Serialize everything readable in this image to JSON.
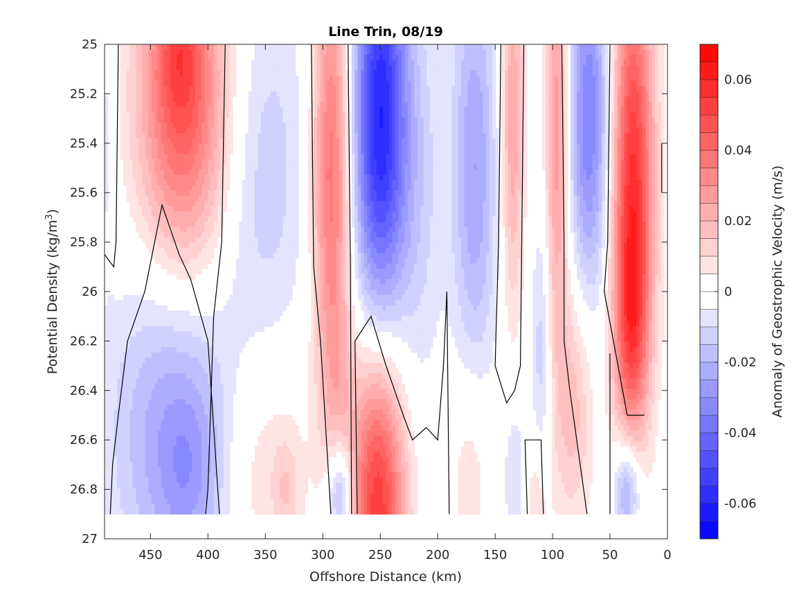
{
  "chart_data": {
    "type": "heatmap",
    "title": "Line Trin, 08/19",
    "xlabel": "Offshore Distance (km)",
    "ylabel_main": "Potential Density (kg/m",
    "ylabel_sup": "3",
    "ylabel_tail": ")",
    "xlim": [
      490,
      0
    ],
    "ylim": [
      25,
      27
    ],
    "y_reversed": true,
    "x_ticks": [
      450,
      400,
      350,
      300,
      250,
      200,
      150,
      100,
      50,
      0
    ],
    "x_tick_labels": [
      "450",
      "400",
      "350",
      "300",
      "250",
      "200",
      "150",
      "100",
      "50",
      "0"
    ],
    "y_ticks": [
      25,
      25.2,
      25.4,
      25.6,
      25.8,
      26,
      26.2,
      26.4,
      26.6,
      26.8,
      27
    ],
    "y_tick_labels": [
      "25",
      "25.2",
      "25.4",
      "25.6",
      "25.8",
      "26",
      "26.2",
      "26.4",
      "26.6",
      "26.8",
      "27"
    ],
    "data_y_range": [
      25,
      26.9
    ],
    "colorbar": {
      "label": "Anomaly of Geostrophic Velocity (m/s)",
      "range": [
        -0.07,
        0.07
      ],
      "step": 0.005,
      "ticks": [
        0.06,
        0.04,
        0.02,
        0,
        -0.02,
        -0.04,
        -0.06
      ],
      "tick_labels": [
        "0.06",
        "0.04",
        "0.02",
        "0",
        "-0.02",
        "-0.04",
        "-0.06"
      ],
      "colormap": [
        "#0000ff",
        "#ffffff",
        "#ff0000"
      ]
    },
    "features": [
      {
        "x": 488,
        "y": 25.35,
        "sx": 6,
        "sy": 0.35,
        "amp": -0.008
      },
      {
        "x": 422,
        "y": 25.25,
        "sx": 28,
        "sy": 0.5,
        "amp": 0.045
      },
      {
        "x": 425,
        "y": 25.0,
        "sx": 14,
        "sy": 0.2,
        "amp": 0.015
      },
      {
        "x": 430,
        "y": 26.55,
        "sx": 38,
        "sy": 0.5,
        "amp": -0.025
      },
      {
        "x": 415,
        "y": 26.75,
        "sx": 18,
        "sy": 0.25,
        "amp": -0.01
      },
      {
        "x": 350,
        "y": 25.5,
        "sx": 28,
        "sy": 0.55,
        "amp": -0.013
      },
      {
        "x": 355,
        "y": 26.7,
        "sx": 28,
        "sy": 0.35,
        "amp": 0.011
      },
      {
        "x": 332,
        "y": 26.8,
        "sx": 8,
        "sy": 0.15,
        "amp": 0.01
      },
      {
        "x": 292,
        "y": 25.5,
        "sx": 12,
        "sy": 0.65,
        "amp": 0.04
      },
      {
        "x": 288,
        "y": 26.4,
        "sx": 10,
        "sy": 0.3,
        "amp": 0.008
      },
      {
        "x": 285,
        "y": 26.82,
        "sx": 8,
        "sy": 0.15,
        "amp": -0.028
      },
      {
        "x": 250,
        "y": 25.3,
        "sx": 17,
        "sy": 0.6,
        "amp": -0.06
      },
      {
        "x": 252,
        "y": 26.85,
        "sx": 17,
        "sy": 0.45,
        "amp": 0.055
      },
      {
        "x": 215,
        "y": 25.6,
        "sx": 14,
        "sy": 0.6,
        "amp": -0.01
      },
      {
        "x": 168,
        "y": 25.5,
        "sx": 14,
        "sy": 0.6,
        "amp": -0.025
      },
      {
        "x": 172,
        "y": 26.7,
        "sx": 12,
        "sy": 0.3,
        "amp": 0.01
      },
      {
        "x": 135,
        "y": 25.3,
        "sx": 7,
        "sy": 0.55,
        "amp": 0.025
      },
      {
        "x": 132,
        "y": 26.75,
        "sx": 8,
        "sy": 0.25,
        "amp": -0.01
      },
      {
        "x": 110,
        "y": 26.25,
        "sx": 6,
        "sy": 0.4,
        "amp": -0.013
      },
      {
        "x": 115,
        "y": 26.85,
        "sx": 8,
        "sy": 0.2,
        "amp": 0.012
      },
      {
        "x": 96,
        "y": 25.35,
        "sx": 7,
        "sy": 0.6,
        "amp": 0.03
      },
      {
        "x": 82,
        "y": 26.45,
        "sx": 12,
        "sy": 0.35,
        "amp": 0.018
      },
      {
        "x": 68,
        "y": 25.3,
        "sx": 13,
        "sy": 0.5,
        "amp": -0.035
      },
      {
        "x": 30,
        "y": 25.55,
        "sx": 13,
        "sy": 0.65,
        "amp": 0.055
      },
      {
        "x": 32,
        "y": 26.15,
        "sx": 10,
        "sy": 0.3,
        "amp": 0.025
      },
      {
        "x": 35,
        "y": 26.8,
        "sx": 8,
        "sy": 0.15,
        "amp": -0.028
      }
    ],
    "zero_contours": [
      [
        [
          490,
          25.85
        ],
        [
          482,
          25.9
        ],
        [
          480,
          25.8
        ],
        [
          478,
          25.0
        ]
      ],
      [
        [
          385,
          25.0
        ],
        [
          388,
          25.8
        ],
        [
          395,
          26.1
        ],
        [
          400,
          26.8
        ],
        [
          402,
          26.9
        ]
      ],
      [
        [
          485,
          26.9
        ],
        [
          483,
          26.7
        ],
        [
          478,
          26.5
        ],
        [
          470,
          26.2
        ],
        [
          455,
          26.0
        ],
        [
          440,
          25.65
        ],
        [
          425,
          25.85
        ],
        [
          415,
          25.95
        ],
        [
          400,
          26.2
        ],
        [
          390,
          26.9
        ]
      ],
      [
        [
          310,
          25.0
        ],
        [
          308,
          25.9
        ],
        [
          302,
          26.2
        ],
        [
          293,
          26.9
        ]
      ],
      [
        [
          278,
          25.0
        ],
        [
          276,
          25.9
        ],
        [
          275,
          26.9
        ]
      ],
      [
        [
          270,
          26.9
        ],
        [
          272,
          26.2
        ],
        [
          258,
          26.1
        ],
        [
          245,
          26.3
        ],
        [
          230,
          26.5
        ],
        [
          222,
          26.6
        ],
        [
          210,
          26.55
        ],
        [
          200,
          26.6
        ],
        [
          195,
          26.3
        ],
        [
          192,
          26.0
        ],
        [
          190,
          26.9
        ]
      ],
      [
        [
          145,
          25.0
        ],
        [
          147,
          25.8
        ],
        [
          150,
          26.3
        ],
        [
          140,
          26.45
        ],
        [
          133,
          26.4
        ],
        [
          128,
          26.3
        ],
        [
          125,
          25.0
        ]
      ],
      [
        [
          92,
          25.0
        ],
        [
          90,
          25.8
        ],
        [
          90,
          26.2
        ],
        [
          85,
          26.4
        ],
        [
          70,
          26.9
        ]
      ],
      [
        [
          50,
          25.0
        ],
        [
          52,
          25.8
        ],
        [
          55,
          26.0
        ],
        [
          35,
          26.5
        ],
        [
          20,
          26.5
        ]
      ],
      [
        [
          122,
          26.9
        ],
        [
          124,
          26.6
        ],
        [
          110,
          26.6
        ],
        [
          108,
          26.9
        ]
      ],
      [
        [
          50,
          26.25
        ],
        [
          50,
          26.9
        ]
      ],
      [
        [
          5,
          25.4
        ],
        [
          5,
          25.6
        ]
      ]
    ]
  }
}
